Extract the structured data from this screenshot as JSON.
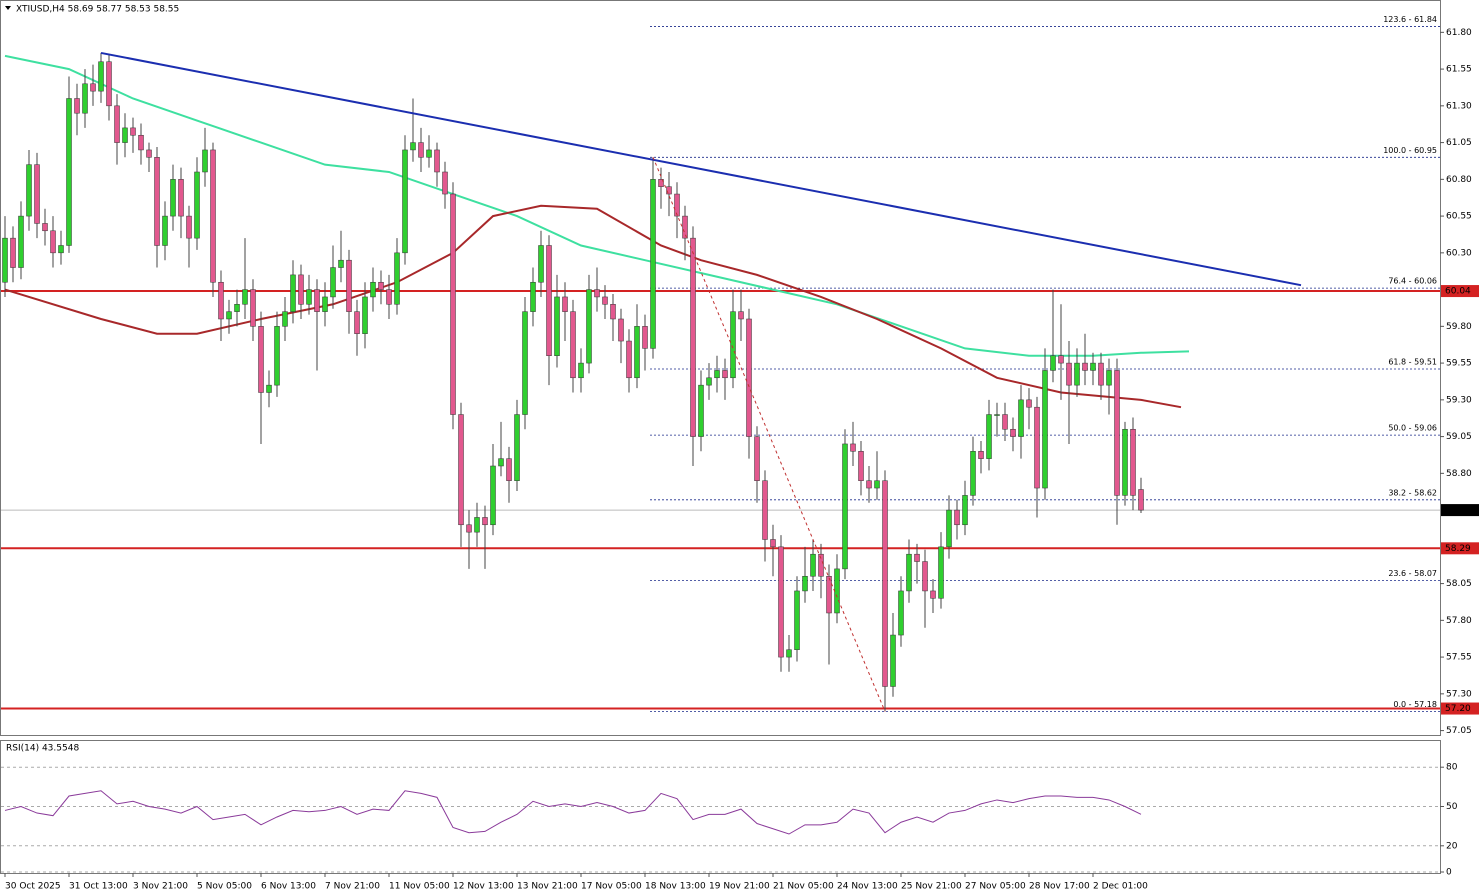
{
  "chart_data": {
    "type": "candlestick",
    "header": "XTIUSD,H4  58.69 58.77 58.53 58.55",
    "up_color": "#2fcf2f",
    "down_color": "#e2588e",
    "wick_color": "#444444",
    "categories": [
      "30 Oct 2025",
      null,
      null,
      null,
      null,
      null,
      null,
      null,
      "31 Oct 13:00",
      null,
      null,
      null,
      null,
      null,
      null,
      null,
      "3 Nov 21:00",
      null,
      null,
      null,
      null,
      null,
      null,
      null,
      "5 Nov 05:00",
      null,
      null,
      null,
      null,
      null,
      null,
      null,
      "6 Nov 13:00",
      null,
      null,
      null,
      null,
      null,
      null,
      null,
      "7 Nov 21:00",
      null,
      null,
      null,
      null,
      null,
      null,
      null,
      "11 Nov 05:00",
      null,
      null,
      null,
      null,
      null,
      null,
      null,
      "12 Nov 13:00",
      null,
      null,
      null,
      null,
      null,
      null,
      null,
      "13 Nov 21:00",
      null,
      null,
      null,
      null,
      null,
      null,
      null,
      "17 Nov 05:00",
      null,
      null,
      null,
      null,
      null,
      null,
      null,
      "18 Nov 13:00",
      null,
      null,
      null,
      null,
      null,
      null,
      null,
      "19 Nov 21:00",
      null,
      null,
      null,
      null,
      null,
      null,
      null,
      "21 Nov 05:00",
      null,
      null,
      null,
      null,
      null,
      null,
      null,
      "24 Nov 13:00",
      null,
      null,
      null,
      null,
      null,
      null,
      null,
      "25 Nov 21:00",
      null,
      null,
      null,
      null,
      null,
      null,
      null,
      "27 Nov 05:00",
      null,
      null,
      null,
      null,
      null,
      null,
      null,
      "28 Nov 17:00",
      null,
      null,
      null,
      null,
      null,
      null,
      null,
      "2 Dec 01:00",
      null,
      null,
      null,
      null,
      null,
      null
    ],
    "candles": [
      [
        60.1,
        60.55,
        60.0,
        60.4
      ],
      [
        60.4,
        60.48,
        60.1,
        60.2
      ],
      [
        60.2,
        60.65,
        60.12,
        60.55
      ],
      [
        60.55,
        61.0,
        60.45,
        60.9
      ],
      [
        60.9,
        60.98,
        60.4,
        60.5
      ],
      [
        60.5,
        60.6,
        60.35,
        60.45
      ],
      [
        60.45,
        60.55,
        60.2,
        60.3
      ],
      [
        60.3,
        60.45,
        60.22,
        60.35
      ],
      [
        60.35,
        61.5,
        60.3,
        61.35
      ],
      [
        61.35,
        61.45,
        61.1,
        61.25
      ],
      [
        61.25,
        61.55,
        61.15,
        61.45
      ],
      [
        61.45,
        61.58,
        61.3,
        61.4
      ],
      [
        61.4,
        61.66,
        61.32,
        61.6
      ],
      [
        61.6,
        61.65,
        61.2,
        61.3
      ],
      [
        61.3,
        61.38,
        60.9,
        61.05
      ],
      [
        61.05,
        61.25,
        60.95,
        61.15
      ],
      [
        61.15,
        61.22,
        60.98,
        61.1
      ],
      [
        61.1,
        61.18,
        60.9,
        61.0
      ],
      [
        61.0,
        61.05,
        60.85,
        60.95
      ],
      [
        60.95,
        61.02,
        60.2,
        60.35
      ],
      [
        60.35,
        60.65,
        60.25,
        60.55
      ],
      [
        60.55,
        60.9,
        60.45,
        60.8
      ],
      [
        60.8,
        60.88,
        60.4,
        60.55
      ],
      [
        60.55,
        60.62,
        60.2,
        60.4
      ],
      [
        60.4,
        60.95,
        60.32,
        60.85
      ],
      [
        60.85,
        61.15,
        60.75,
        61.0
      ],
      [
        61.0,
        61.05,
        60.0,
        60.1
      ],
      [
        60.1,
        60.18,
        59.7,
        59.85
      ],
      [
        59.85,
        59.98,
        59.75,
        59.9
      ],
      [
        59.9,
        60.05,
        59.8,
        59.95
      ],
      [
        59.95,
        60.4,
        59.85,
        60.05
      ],
      [
        60.05,
        60.12,
        59.7,
        59.8
      ],
      [
        59.8,
        59.9,
        59.0,
        59.35
      ],
      [
        59.35,
        59.5,
        59.25,
        59.4
      ],
      [
        59.4,
        59.9,
        59.32,
        59.8
      ],
      [
        59.8,
        60.0,
        59.7,
        59.9
      ],
      [
        59.9,
        60.25,
        59.82,
        60.15
      ],
      [
        60.15,
        60.22,
        59.85,
        59.95
      ],
      [
        59.95,
        60.15,
        59.88,
        60.05
      ],
      [
        60.05,
        60.12,
        59.5,
        59.9
      ],
      [
        59.9,
        60.1,
        59.8,
        60.0
      ],
      [
        60.0,
        60.35,
        59.92,
        60.2
      ],
      [
        60.2,
        60.45,
        60.1,
        60.25
      ],
      [
        60.25,
        60.32,
        59.75,
        59.9
      ],
      [
        59.9,
        59.98,
        59.6,
        59.75
      ],
      [
        59.75,
        60.1,
        59.65,
        60.0
      ],
      [
        60.0,
        60.2,
        59.9,
        60.1
      ],
      [
        60.1,
        60.18,
        59.95,
        60.05
      ],
      [
        60.05,
        60.15,
        59.85,
        59.95
      ],
      [
        59.95,
        60.4,
        59.88,
        60.3
      ],
      [
        60.3,
        61.1,
        60.22,
        61.0
      ],
      [
        61.0,
        61.35,
        60.92,
        61.05
      ],
      [
        61.05,
        61.15,
        60.85,
        60.95
      ],
      [
        60.95,
        61.1,
        60.88,
        61.0
      ],
      [
        61.0,
        61.05,
        60.75,
        60.85
      ],
      [
        60.85,
        60.92,
        60.6,
        60.7
      ],
      [
        60.7,
        60.78,
        59.1,
        59.2
      ],
      [
        59.2,
        59.28,
        58.3,
        58.45
      ],
      [
        58.45,
        58.55,
        58.15,
        58.4
      ],
      [
        58.4,
        58.6,
        58.3,
        58.5
      ],
      [
        58.5,
        58.58,
        58.15,
        58.45
      ],
      [
        58.45,
        59.0,
        58.38,
        58.85
      ],
      [
        58.85,
        59.15,
        58.78,
        58.9
      ],
      [
        58.9,
        58.98,
        58.6,
        58.75
      ],
      [
        58.75,
        59.3,
        58.68,
        59.2
      ],
      [
        59.2,
        60.0,
        59.1,
        59.9
      ],
      [
        59.9,
        60.2,
        59.8,
        60.1
      ],
      [
        60.1,
        60.45,
        60.0,
        60.35
      ],
      [
        60.35,
        60.42,
        59.4,
        59.6
      ],
      [
        59.6,
        60.15,
        59.52,
        60.0
      ],
      [
        60.0,
        60.1,
        59.7,
        59.9
      ],
      [
        59.9,
        59.98,
        59.35,
        59.45
      ],
      [
        59.45,
        59.65,
        59.35,
        59.55
      ],
      [
        59.55,
        60.15,
        59.48,
        60.05
      ],
      [
        60.05,
        60.2,
        59.9,
        60.0
      ],
      [
        60.0,
        60.08,
        59.85,
        59.95
      ],
      [
        59.95,
        60.02,
        59.7,
        59.85
      ],
      [
        59.85,
        59.92,
        59.55,
        59.7
      ],
      [
        59.7,
        59.78,
        59.35,
        59.45
      ],
      [
        59.45,
        59.95,
        59.38,
        59.8
      ],
      [
        59.8,
        59.88,
        59.5,
        59.65
      ],
      [
        59.65,
        60.95,
        59.58,
        60.8
      ],
      [
        60.8,
        60.88,
        60.6,
        60.75
      ],
      [
        60.75,
        60.85,
        60.55,
        60.7
      ],
      [
        60.7,
        60.78,
        60.4,
        60.55
      ],
      [
        60.55,
        60.62,
        60.25,
        60.4
      ],
      [
        60.4,
        60.48,
        58.85,
        59.05
      ],
      [
        59.05,
        59.5,
        58.95,
        59.4
      ],
      [
        59.4,
        59.55,
        59.3,
        59.45
      ],
      [
        59.45,
        59.6,
        59.35,
        59.5
      ],
      [
        59.5,
        59.58,
        59.3,
        59.45
      ],
      [
        59.45,
        60.05,
        59.38,
        59.9
      ],
      [
        59.9,
        60.05,
        59.7,
        59.85
      ],
      [
        59.85,
        59.92,
        58.9,
        59.05
      ],
      [
        59.05,
        59.12,
        58.6,
        58.75
      ],
      [
        58.75,
        58.82,
        58.2,
        58.35
      ],
      [
        58.35,
        58.45,
        58.1,
        58.3
      ],
      [
        58.3,
        58.38,
        57.45,
        57.55
      ],
      [
        57.55,
        57.7,
        57.45,
        57.6
      ],
      [
        57.6,
        58.1,
        57.52,
        58.0
      ],
      [
        58.0,
        58.3,
        57.92,
        58.1
      ],
      [
        58.1,
        58.35,
        58.0,
        58.25
      ],
      [
        58.25,
        58.32,
        57.95,
        58.1
      ],
      [
        58.1,
        58.18,
        57.5,
        57.85
      ],
      [
        57.85,
        58.25,
        57.78,
        58.15
      ],
      [
        58.15,
        59.1,
        58.08,
        59.0
      ],
      [
        59.0,
        59.15,
        58.85,
        58.95
      ],
      [
        58.95,
        59.02,
        58.65,
        58.75
      ],
      [
        58.75,
        58.85,
        58.6,
        58.7
      ],
      [
        58.7,
        58.95,
        58.62,
        58.75
      ],
      [
        58.75,
        58.82,
        57.18,
        57.35
      ],
      [
        57.35,
        57.85,
        57.28,
        57.7
      ],
      [
        57.7,
        58.1,
        57.62,
        58.0
      ],
      [
        58.0,
        58.35,
        57.92,
        58.25
      ],
      [
        58.25,
        58.32,
        58.05,
        58.2
      ],
      [
        58.2,
        58.28,
        57.75,
        58.0
      ],
      [
        58.0,
        58.08,
        57.85,
        57.95
      ],
      [
        57.95,
        58.4,
        57.88,
        58.3
      ],
      [
        58.3,
        58.65,
        58.22,
        58.55
      ],
      [
        58.55,
        58.62,
        58.35,
        58.45
      ],
      [
        58.45,
        58.75,
        58.38,
        58.65
      ],
      [
        58.65,
        59.05,
        58.58,
        58.95
      ],
      [
        58.95,
        59.02,
        58.8,
        58.9
      ],
      [
        58.9,
        59.3,
        58.82,
        59.2
      ],
      [
        59.2,
        59.28,
        59.05,
        59.2
      ],
      [
        59.2,
        59.28,
        59.02,
        59.1
      ],
      [
        59.1,
        59.18,
        58.95,
        59.05
      ],
      [
        59.05,
        59.4,
        58.9,
        59.3
      ],
      [
        59.3,
        59.38,
        59.1,
        59.25
      ],
      [
        59.25,
        59.32,
        58.5,
        58.7
      ],
      [
        58.7,
        59.65,
        58.62,
        59.5
      ],
      [
        59.5,
        60.05,
        59.42,
        59.6
      ],
      [
        59.6,
        59.95,
        59.3,
        59.55
      ],
      [
        59.55,
        59.7,
        59.0,
        59.4
      ],
      [
        59.4,
        59.65,
        59.32,
        59.55
      ],
      [
        59.55,
        59.75,
        59.4,
        59.5
      ],
      [
        59.5,
        59.62,
        59.4,
        59.55
      ],
      [
        59.55,
        59.62,
        59.3,
        59.4
      ],
      [
        59.4,
        59.58,
        59.2,
        59.5
      ],
      [
        59.5,
        59.58,
        58.45,
        58.65
      ],
      [
        58.65,
        59.15,
        58.58,
        59.1
      ],
      [
        59.1,
        59.18,
        58.55,
        58.65
      ],
      [
        58.69,
        58.77,
        58.53,
        58.55
      ]
    ],
    "ylim": [
      57.02,
      62.02
    ],
    "yticks": [
      {
        "value": 61.8,
        "label": "61.80"
      },
      {
        "value": 61.55,
        "label": "61.55"
      },
      {
        "value": 61.3,
        "label": "61.30"
      },
      {
        "value": 61.05,
        "label": "61.05"
      },
      {
        "value": 60.8,
        "label": "60.80"
      },
      {
        "value": 60.55,
        "label": "60.55"
      },
      {
        "value": 60.3,
        "label": "60.30"
      },
      {
        "value": 59.8,
        "label": "59.80"
      },
      {
        "value": 59.55,
        "label": "59.55"
      },
      {
        "value": 59.3,
        "label": "59.30"
      },
      {
        "value": 59.05,
        "label": "59.05"
      },
      {
        "value": 58.8,
        "label": "58.80"
      },
      {
        "value": 58.05,
        "label": "58.05"
      },
      {
        "value": 57.8,
        "label": "57.80"
      },
      {
        "value": 57.55,
        "label": "57.55"
      },
      {
        "value": 57.3,
        "label": "57.30"
      },
      {
        "value": 57.05,
        "label": "57.05"
      }
    ],
    "moving_averages": [
      {
        "color": "#3ee0a0",
        "x": [
          0,
          8,
          16,
          24,
          32,
          40,
          48,
          56,
          64,
          72,
          80,
          88,
          96,
          104,
          112,
          120,
          128,
          136,
          142,
          148
        ],
        "values": [
          61.64,
          61.55,
          61.35,
          61.2,
          61.05,
          60.9,
          60.85,
          60.7,
          60.55,
          60.35,
          60.25,
          60.15,
          60.05,
          59.95,
          59.8,
          59.65,
          59.6,
          59.6,
          59.62,
          59.63
        ]
      },
      {
        "color": "#a8282a",
        "x": [
          0,
          12,
          19,
          24,
          32,
          41,
          49,
          56,
          61,
          67,
          74,
          82,
          87,
          94,
          102,
          109,
          117,
          124,
          132,
          142,
          147
        ],
        "values": [
          60.05,
          59.85,
          59.75,
          59.75,
          59.85,
          59.95,
          60.1,
          60.3,
          60.55,
          60.62,
          60.6,
          60.35,
          60.25,
          60.15,
          60.0,
          59.85,
          59.65,
          59.45,
          59.35,
          59.3,
          59.25
        ]
      }
    ],
    "trendline": {
      "color": "#1b2eb0",
      "x": [
        12,
        162
      ],
      "values": [
        61.66,
        60.08
      ]
    },
    "fib_line": {
      "color": "#c03030",
      "x": [
        81,
        110
      ],
      "values": [
        60.95,
        57.18
      ]
    },
    "fib_color": "#1a2a8a",
    "fib_levels": [
      {
        "label": "123.6 - 61.84",
        "value": 61.84
      },
      {
        "label": "100.0 - 60.95",
        "value": 60.95
      },
      {
        "label": "76.4 - 60.06",
        "value": 60.06
      },
      {
        "label": "61.8 - 59.51",
        "value": 59.51
      },
      {
        "label": "50.0 - 59.06",
        "value": 59.06
      },
      {
        "label": "38.2 - 58.62",
        "value": 58.62
      },
      {
        "label": "23.6 - 58.07",
        "value": 58.07
      },
      {
        "label": "0.0 - 57.18",
        "value": 57.18
      }
    ],
    "levels": [
      {
        "label": "60.04",
        "value": 60.04,
        "color": "#d42222"
      },
      {
        "label": "58.29",
        "value": 58.29,
        "color": "#d42222"
      },
      {
        "label": "57.20",
        "value": 57.2,
        "color": "#d42222"
      }
    ],
    "current_price": {
      "label": "58.55",
      "value": 58.55
    },
    "rsi": {
      "label": "RSI(14) 43.5548",
      "color": "#8a3a9a",
      "ylim": [
        0,
        100
      ],
      "yticks": [
        80,
        50,
        20,
        0
      ],
      "x": [
        0,
        2,
        4,
        6,
        8,
        10,
        12,
        14,
        16,
        18,
        20,
        22,
        24,
        26,
        28,
        30,
        32,
        34,
        36,
        38,
        40,
        42,
        44,
        46,
        48,
        50,
        52,
        54,
        56,
        58,
        60,
        62,
        64,
        66,
        68,
        70,
        72,
        74,
        76,
        78,
        80,
        82,
        84,
        86,
        88,
        90,
        92,
        94,
        96,
        98,
        100,
        102,
        104,
        106,
        108,
        110,
        112,
        114,
        116,
        118,
        120,
        122,
        124,
        126,
        128,
        130,
        132,
        134,
        136,
        138,
        140,
        142
      ],
      "values": [
        47,
        50,
        45,
        43,
        58,
        60,
        62,
        52,
        54,
        50,
        48,
        45,
        50,
        40,
        42,
        44,
        36,
        42,
        47,
        46,
        47,
        50,
        44,
        48,
        47,
        62,
        60,
        57,
        34,
        30,
        31,
        38,
        44,
        54,
        50,
        52,
        50,
        53,
        50,
        45,
        47,
        60,
        56,
        40,
        44,
        44,
        48,
        37,
        33,
        29,
        36,
        36,
        38,
        48,
        45,
        30,
        38,
        42,
        38,
        45,
        47,
        52,
        55,
        53,
        56,
        58,
        58,
        57,
        57,
        55,
        50,
        44
      ]
    }
  }
}
